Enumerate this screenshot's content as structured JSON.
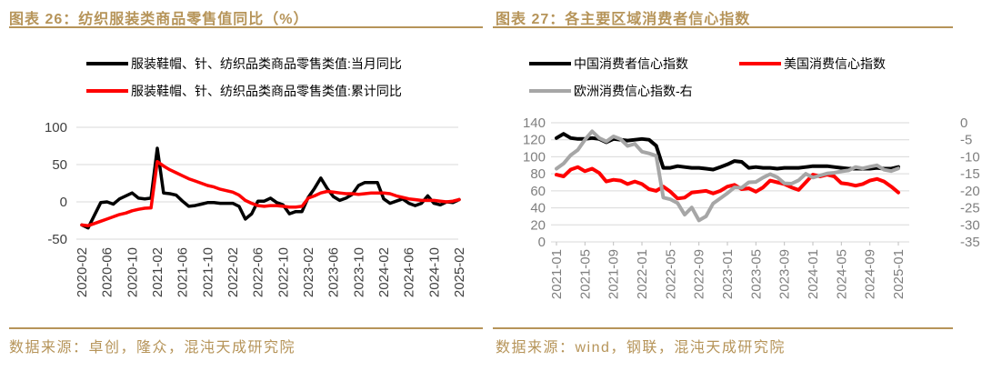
{
  "accent_color": "#B69459",
  "grid_color": "#D9D9D9",
  "figures": [
    {
      "title": "图表 26：纺织服装类商品零售值同比（%）",
      "source": "数据来源：卓创，隆众，混沌天成研究院"
    },
    {
      "title": "图表 27：各主要区域消费者信心指数",
      "source": "数据来源：wind，钢联，混沌天成研究院"
    }
  ],
  "chart_data": [
    {
      "type": "line",
      "title": "纺织服装类商品零售值同比（%）",
      "x_ticks": [
        "2020-02",
        "2020-06",
        "2020-10",
        "2021-02",
        "2021-06",
        "2021-10",
        "2022-02",
        "2022-06",
        "2022-10",
        "2023-02",
        "2023-06",
        "2023-10",
        "2024-02",
        "2024-06",
        "2024-10",
        "2025-02"
      ],
      "x_tick_every": 4,
      "n_points": 61,
      "ylim": [
        -50,
        100
      ],
      "yticks": [
        100,
        50,
        0,
        -50
      ],
      "grid": true,
      "legend_position": "top",
      "series": [
        {
          "name": "服装鞋帽、针、纺织品类商品零售类值:当月同比",
          "color": "#000000",
          "axis": "left",
          "values": [
            -31,
            -35,
            -18,
            -1,
            0,
            -3,
            4,
            8,
            12,
            5,
            4,
            5,
            72,
            12,
            11,
            9,
            1,
            -6,
            -5,
            -3,
            -1,
            -1,
            -2,
            -2,
            -2,
            -6,
            -23,
            -16,
            1,
            1,
            5,
            -1,
            -4,
            -16,
            -13,
            -13,
            6,
            18,
            32,
            18,
            7,
            2,
            5,
            10,
            22,
            26,
            26,
            26,
            4,
            -2,
            1,
            4,
            -2,
            -5,
            -2,
            8,
            -2,
            -4,
            0,
            -1,
            3
          ]
        },
        {
          "name": "服装鞋帽、针、纺织品类商品零售类值:累计同比",
          "color": "#FF0000",
          "axis": "left",
          "values": [
            -31,
            -32,
            -29,
            -26,
            -23,
            -20,
            -17,
            -15,
            -12,
            -10,
            -8.5,
            -8,
            54,
            48,
            43,
            39,
            35,
            31,
            28,
            25,
            22,
            20,
            17,
            15,
            13,
            9,
            2,
            -2,
            -5,
            -6,
            -5,
            -5,
            -6,
            -7,
            -7,
            -6,
            5,
            8,
            12,
            14,
            13,
            12,
            11,
            11,
            10,
            11,
            12,
            12,
            12,
            11,
            8,
            6,
            4,
            3,
            2,
            2,
            2,
            1,
            0,
            1,
            3
          ]
        }
      ]
    },
    {
      "type": "line",
      "title": "各主要区域消费者信心指数",
      "x_ticks": [
        "2021-01",
        "2021-05",
        "2021-09",
        "2022-01",
        "2022-05",
        "2022-09",
        "2023-01",
        "2023-05",
        "2023-09",
        "2024-01",
        "2024-05",
        "2024-09",
        "2025-01"
      ],
      "x_tick_every": 4,
      "n_points": 49,
      "ylim": [
        0,
        140
      ],
      "yticks": [
        140,
        120,
        100,
        80,
        60,
        40,
        20,
        0
      ],
      "y2lim": [
        -35,
        0
      ],
      "y2ticks": [
        0,
        -5,
        -10,
        -15,
        -20,
        -25,
        -30,
        -35
      ],
      "grid": true,
      "legend_position": "top",
      "series": [
        {
          "name": "中国消费者信心指数",
          "color": "#000000",
          "axis": "left",
          "values": [
            122,
            127,
            122,
            121,
            121,
            122,
            121,
            117,
            121,
            120,
            119,
            120,
            121,
            120,
            113,
            87,
            87,
            89,
            88,
            87,
            87,
            86,
            85,
            88,
            91,
            95,
            94,
            87,
            88,
            87,
            87,
            86,
            87,
            87,
            87,
            88,
            89,
            89,
            89,
            88,
            87,
            86,
            86,
            86,
            86,
            87,
            86,
            86,
            88
          ]
        },
        {
          "name": "美国消费信心指数",
          "color": "#FF0000",
          "axis": "left",
          "values": [
            79,
            77,
            85,
            88,
            83,
            86,
            81,
            71,
            73,
            72,
            68,
            71,
            68,
            62,
            60,
            65,
            59,
            51,
            52,
            58,
            59,
            60,
            57,
            60,
            65,
            67,
            62,
            63,
            59,
            64,
            72,
            70,
            68,
            64,
            61,
            70,
            79,
            77,
            79,
            77,
            69,
            68,
            66,
            68,
            72,
            74,
            71,
            65,
            58
          ]
        },
        {
          "name": "欧洲消费信心指数-右",
          "color": "#A6A6A6",
          "axis": "right",
          "values": [
            -13.5,
            -12,
            -9.5,
            -8,
            -5,
            -2.5,
            -4.5,
            -5.5,
            -4,
            -4.8,
            -6.8,
            -6.2,
            -8.5,
            -9,
            -9.7,
            -22,
            -22.5,
            -23.6,
            -27,
            -24.9,
            -28.7,
            -27.5,
            -23.7,
            -22.2,
            -20.7,
            -19,
            -19.1,
            -17.5,
            -17.4,
            -16.1,
            -15.1,
            -16,
            -17.8,
            -17.9,
            -16.9,
            -15,
            -16.1,
            -15.5,
            -14.9,
            -14.7,
            -14.3,
            -14,
            -13,
            -13.4,
            -12.9,
            -12.5,
            -13.8,
            -14.2,
            -13.4
          ]
        }
      ]
    }
  ]
}
